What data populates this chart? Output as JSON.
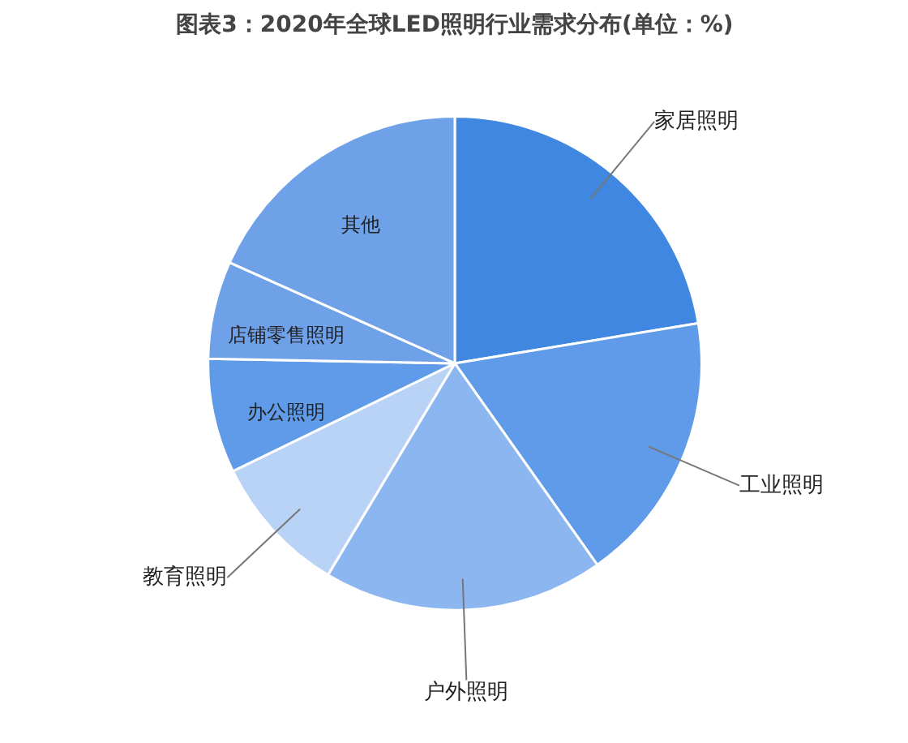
{
  "chart_data": {
    "type": "pie",
    "title": "图表3：2020年全球LED照明行业需求分布(单位：%)",
    "categories": [
      "家居照明",
      "工业照明",
      "户外照明",
      "教育照明",
      "办公照明",
      "店铺零售照明",
      "其他"
    ],
    "values": [
      22.4,
      17.8,
      18.4,
      9.2,
      7.5,
      6.4,
      18.3
    ],
    "colors": [
      "#3f87e0",
      "#5f9be8",
      "#8cb6f0",
      "#b9d3f7",
      "#5f9be8",
      "#6ea1e8",
      "#6ea1e8"
    ]
  }
}
